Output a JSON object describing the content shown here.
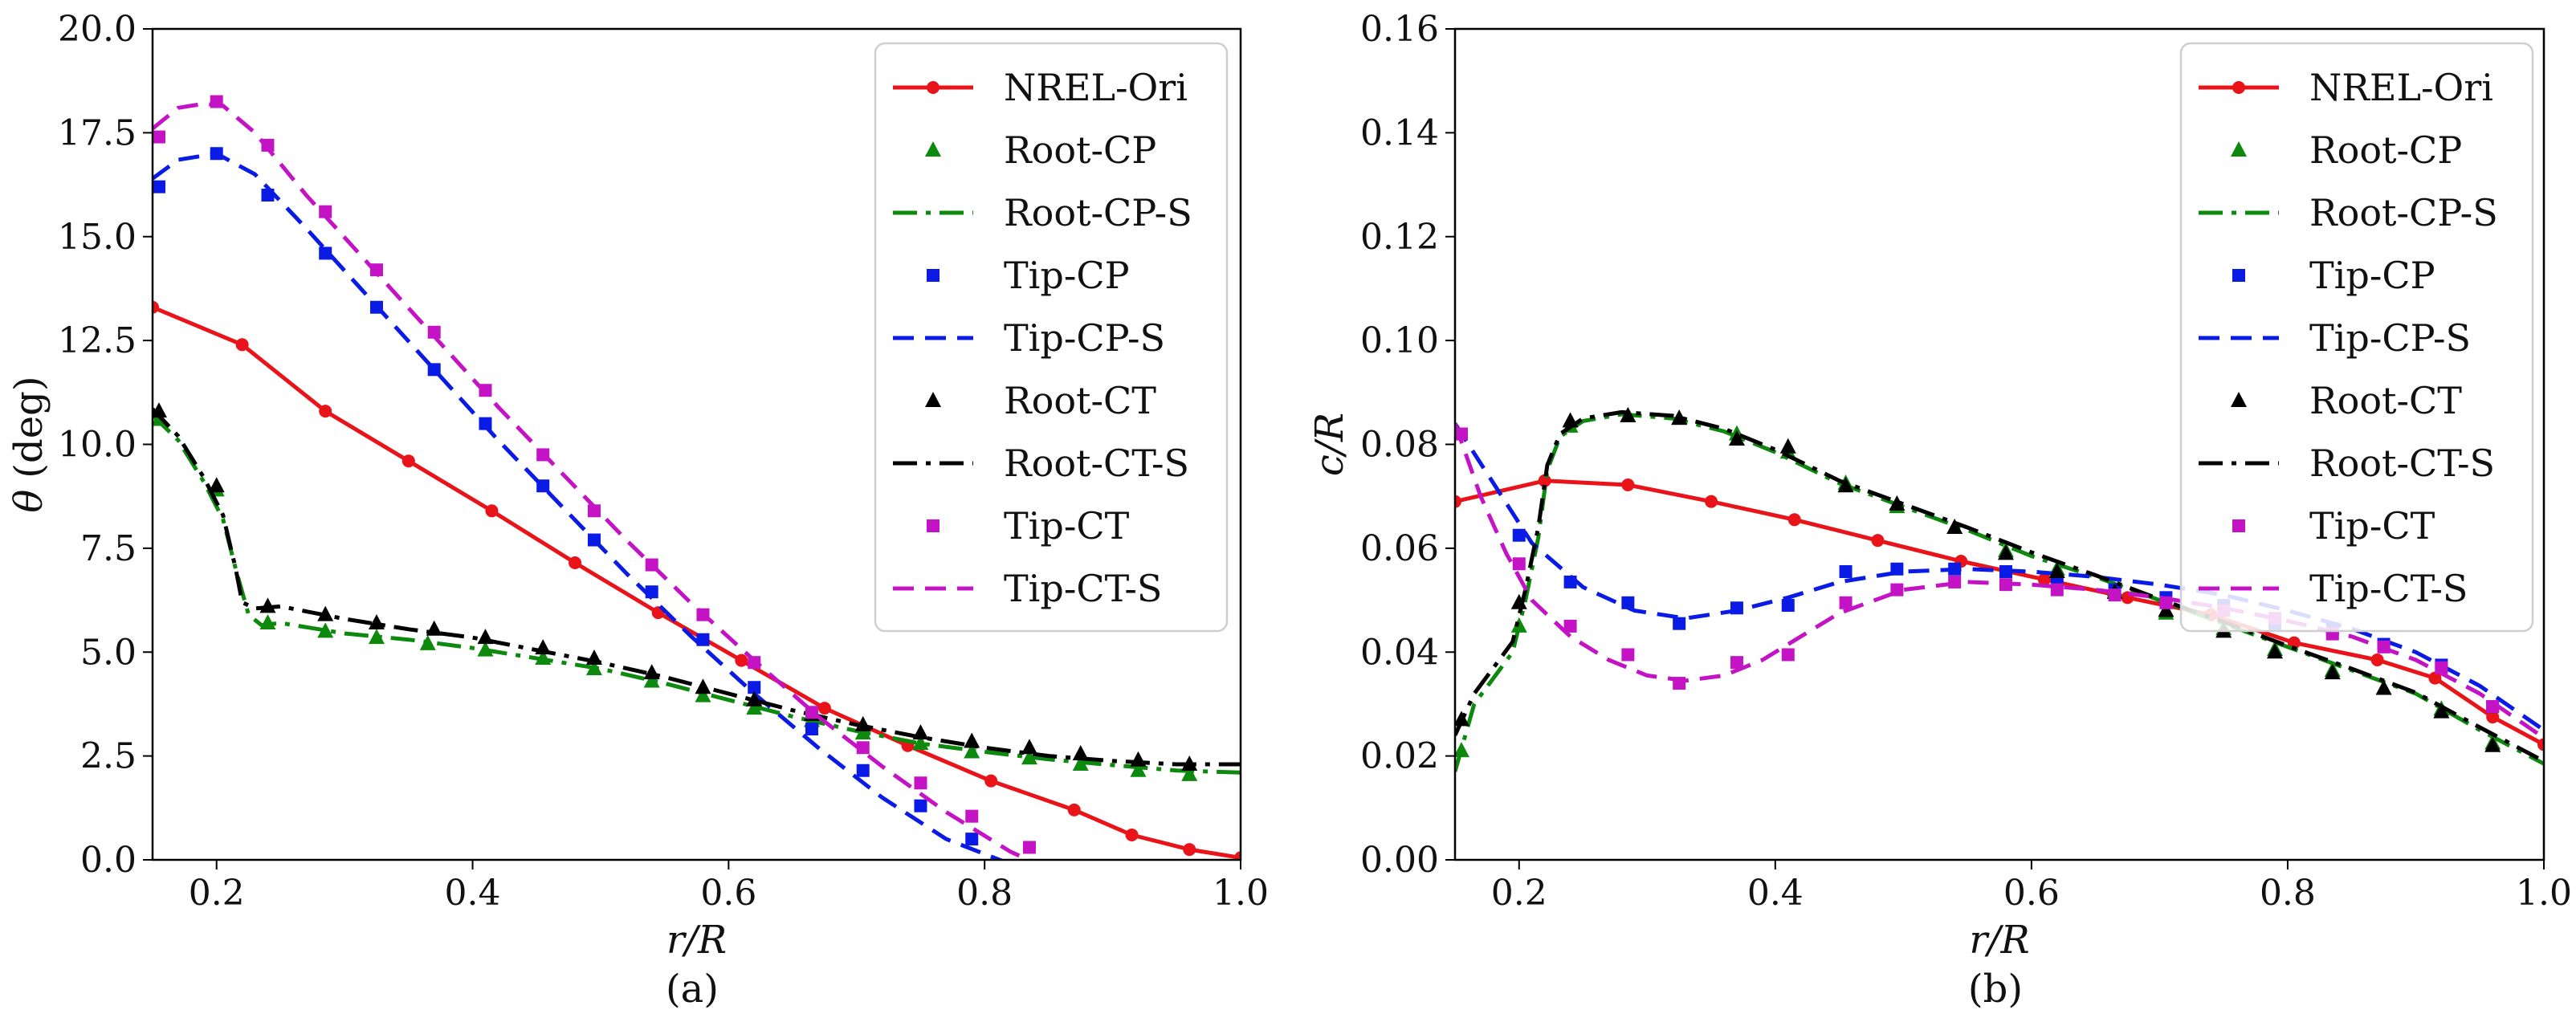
{
  "figure": {
    "captions": [
      "(a)",
      "(b)"
    ]
  },
  "chart_data": [
    {
      "type": "line",
      "panel": "a",
      "xlabel": "r/R",
      "ylabel": "θ (deg)",
      "xlim": [
        0.15,
        1.0
      ],
      "ylim": [
        0.0,
        20.0
      ],
      "xticks": [
        0.2,
        0.4,
        0.6,
        0.8,
        1.0
      ],
      "xtick_labels": [
        "0.2",
        "0.4",
        "0.6",
        "0.8",
        "1.0"
      ],
      "yticks": [
        0.0,
        2.5,
        5.0,
        7.5,
        10.0,
        12.5,
        15.0,
        17.5,
        20.0
      ],
      "ytick_labels": [
        "0.0",
        "2.5",
        "5.0",
        "7.5",
        "10.0",
        "12.5",
        "15.0",
        "17.5",
        "20.0"
      ],
      "legend_position": "top-right",
      "series": [
        {
          "name": "NREL-Ori",
          "color": "#e8141a",
          "line": "solid",
          "marker": "circle",
          "x": [
            0.15,
            0.22,
            0.285,
            0.35,
            0.415,
            0.48,
            0.545,
            0.61,
            0.675,
            0.74,
            0.805,
            0.87,
            0.915,
            0.96,
            1.0
          ],
          "y": [
            13.3,
            12.4,
            10.8,
            9.6,
            8.4,
            7.15,
            5.95,
            4.8,
            3.65,
            2.75,
            1.9,
            1.2,
            0.6,
            0.25,
            0.05
          ]
        },
        {
          "name": "Root-CP",
          "color": "#0d8a0d",
          "line": "none",
          "marker": "triangle",
          "x": [
            0.155,
            0.2,
            0.24,
            0.285,
            0.325,
            0.365,
            0.41,
            0.455,
            0.495,
            0.54,
            0.58,
            0.62,
            0.665,
            0.705,
            0.75,
            0.79,
            0.835,
            0.875,
            0.92,
            0.96
          ],
          "y": [
            10.6,
            8.9,
            5.7,
            5.5,
            5.35,
            5.2,
            5.05,
            4.85,
            4.6,
            4.3,
            3.95,
            3.65,
            3.35,
            3.05,
            2.8,
            2.6,
            2.45,
            2.3,
            2.15,
            2.05
          ]
        },
        {
          "name": "Root-CP-S",
          "color": "#0d8a0d",
          "line": "dashdot",
          "marker": "none",
          "x": [
            0.15,
            0.17,
            0.19,
            0.205,
            0.215,
            0.225,
            0.235,
            0.25,
            0.3,
            0.35,
            0.4,
            0.45,
            0.5,
            0.55,
            0.6,
            0.65,
            0.7,
            0.75,
            0.8,
            0.85,
            0.9,
            0.95,
            1.0
          ],
          "y": [
            10.7,
            10.1,
            9.1,
            8.2,
            7.0,
            5.9,
            5.65,
            5.7,
            5.45,
            5.3,
            5.1,
            4.85,
            4.6,
            4.25,
            3.85,
            3.45,
            3.1,
            2.8,
            2.6,
            2.42,
            2.28,
            2.15,
            2.1
          ]
        },
        {
          "name": "Tip-CP",
          "color": "#0a1be6",
          "line": "none",
          "marker": "square",
          "x": [
            0.155,
            0.2,
            0.24,
            0.285,
            0.325,
            0.37,
            0.41,
            0.455,
            0.495,
            0.54,
            0.58,
            0.62,
            0.665,
            0.705,
            0.75,
            0.79
          ],
          "y": [
            16.2,
            17.0,
            16.0,
            14.6,
            13.3,
            11.8,
            10.5,
            9.0,
            7.7,
            6.45,
            5.3,
            4.15,
            3.15,
            2.15,
            1.3,
            0.5
          ]
        },
        {
          "name": "Tip-CP-S",
          "color": "#0a1be6",
          "line": "dashed",
          "marker": "none",
          "x": [
            0.15,
            0.17,
            0.2,
            0.23,
            0.27,
            0.32,
            0.37,
            0.42,
            0.47,
            0.52,
            0.57,
            0.62,
            0.67,
            0.72,
            0.77,
            0.82
          ],
          "y": [
            16.4,
            16.85,
            17.0,
            16.5,
            15.2,
            13.5,
            11.8,
            10.1,
            8.5,
            6.9,
            5.4,
            4.0,
            2.7,
            1.5,
            0.5,
            -0.1
          ]
        },
        {
          "name": "Root-CT",
          "color": "#000000",
          "line": "none",
          "marker": "triangle",
          "x": [
            0.155,
            0.2,
            0.24,
            0.285,
            0.325,
            0.37,
            0.41,
            0.455,
            0.495,
            0.54,
            0.58,
            0.62,
            0.665,
            0.705,
            0.75,
            0.79,
            0.835,
            0.875,
            0.92,
            0.96
          ],
          "y": [
            10.8,
            9.0,
            6.1,
            5.9,
            5.7,
            5.55,
            5.35,
            5.1,
            4.85,
            4.5,
            4.15,
            3.85,
            3.5,
            3.25,
            3.05,
            2.85,
            2.7,
            2.55,
            2.4,
            2.3
          ]
        },
        {
          "name": "Root-CT-S",
          "color": "#000000",
          "line": "dashdot",
          "marker": "none",
          "x": [
            0.15,
            0.17,
            0.19,
            0.205,
            0.215,
            0.22,
            0.23,
            0.25,
            0.3,
            0.35,
            0.4,
            0.45,
            0.5,
            0.55,
            0.6,
            0.65,
            0.7,
            0.75,
            0.8,
            0.85,
            0.9,
            0.95,
            1.0
          ],
          "y": [
            10.85,
            10.2,
            9.2,
            8.3,
            7.0,
            6.2,
            6.05,
            6.1,
            5.8,
            5.55,
            5.35,
            5.05,
            4.75,
            4.4,
            4.0,
            3.6,
            3.25,
            2.95,
            2.7,
            2.5,
            2.38,
            2.3,
            2.3
          ]
        },
        {
          "name": "Tip-CT",
          "color": "#c413c4",
          "line": "none",
          "marker": "square",
          "x": [
            0.155,
            0.2,
            0.24,
            0.285,
            0.325,
            0.37,
            0.41,
            0.455,
            0.495,
            0.54,
            0.58,
            0.62,
            0.665,
            0.705,
            0.75,
            0.79,
            0.835
          ],
          "y": [
            17.4,
            18.25,
            17.2,
            15.6,
            14.2,
            12.7,
            11.3,
            9.75,
            8.4,
            7.1,
            5.9,
            4.75,
            3.55,
            2.7,
            1.85,
            1.05,
            0.3
          ]
        },
        {
          "name": "Tip-CT-S",
          "color": "#c413c4",
          "line": "dashed",
          "marker": "none",
          "x": [
            0.15,
            0.17,
            0.19,
            0.205,
            0.23,
            0.27,
            0.32,
            0.37,
            0.42,
            0.47,
            0.52,
            0.57,
            0.62,
            0.67,
            0.72,
            0.77,
            0.82,
            0.845
          ],
          "y": [
            17.6,
            18.1,
            18.2,
            18.15,
            17.5,
            16.0,
            14.3,
            12.6,
            10.9,
            9.3,
            7.7,
            6.2,
            4.8,
            3.45,
            2.25,
            1.15,
            0.2,
            -0.15
          ]
        }
      ]
    },
    {
      "type": "line",
      "panel": "b",
      "xlabel": "r/R",
      "ylabel": "c/R",
      "xlim": [
        0.15,
        1.0
      ],
      "ylim": [
        0.0,
        0.16
      ],
      "xticks": [
        0.2,
        0.4,
        0.6,
        0.8,
        1.0
      ],
      "xtick_labels": [
        "0.2",
        "0.4",
        "0.6",
        "0.8",
        "1.0"
      ],
      "yticks": [
        0.0,
        0.02,
        0.04,
        0.06,
        0.08,
        0.1,
        0.12,
        0.14,
        0.16
      ],
      "ytick_labels": [
        "0.00",
        "0.02",
        "0.04",
        "0.06",
        "0.08",
        "0.10",
        "0.12",
        "0.14",
        "0.16"
      ],
      "legend_position": "top-right",
      "series": [
        {
          "name": "NREL-Ori",
          "color": "#e8141a",
          "line": "solid",
          "marker": "circle",
          "x": [
            0.15,
            0.22,
            0.285,
            0.35,
            0.415,
            0.48,
            0.545,
            0.61,
            0.675,
            0.74,
            0.805,
            0.87,
            0.915,
            0.96,
            1.0
          ],
          "y": [
            0.069,
            0.073,
            0.0722,
            0.069,
            0.0655,
            0.0615,
            0.0575,
            0.054,
            0.0505,
            0.0472,
            0.0418,
            0.0385,
            0.035,
            0.0275,
            0.0222
          ]
        },
        {
          "name": "Root-CP",
          "color": "#0d8a0d",
          "line": "none",
          "marker": "triangle",
          "x": [
            0.155,
            0.2,
            0.24,
            0.285,
            0.325,
            0.37,
            0.41,
            0.455,
            0.495,
            0.54,
            0.58,
            0.62,
            0.665,
            0.705,
            0.75,
            0.79,
            0.835,
            0.875,
            0.92,
            0.96
          ],
          "y": [
            0.021,
            0.045,
            0.0835,
            0.0855,
            0.085,
            0.082,
            0.0785,
            0.0725,
            0.068,
            0.064,
            0.0595,
            0.056,
            0.052,
            0.0475,
            0.0445,
            0.0405,
            0.0365,
            0.033,
            0.029,
            0.0225
          ]
        },
        {
          "name": "Root-CP-S",
          "color": "#0d8a0d",
          "line": "dashdot",
          "marker": "none",
          "x": [
            0.15,
            0.165,
            0.18,
            0.195,
            0.205,
            0.215,
            0.222,
            0.232,
            0.25,
            0.28,
            0.32,
            0.36,
            0.4,
            0.45,
            0.5,
            0.55,
            0.6,
            0.65,
            0.7,
            0.75,
            0.8,
            0.85,
            0.9,
            0.95,
            1.0
          ],
          "y": [
            0.017,
            0.03,
            0.035,
            0.04,
            0.05,
            0.062,
            0.075,
            0.0815,
            0.0845,
            0.0858,
            0.085,
            0.0825,
            0.0785,
            0.0725,
            0.068,
            0.0635,
            0.0585,
            0.0545,
            0.05,
            0.0455,
            0.041,
            0.0365,
            0.032,
            0.025,
            0.0185
          ]
        },
        {
          "name": "Tip-CP",
          "color": "#0a1be6",
          "line": "none",
          "marker": "square",
          "x": [
            0.155,
            0.2,
            0.24,
            0.285,
            0.325,
            0.37,
            0.41,
            0.455,
            0.495,
            0.54,
            0.58,
            0.62,
            0.665,
            0.705,
            0.75,
            0.79,
            0.835,
            0.875,
            0.92,
            0.96
          ],
          "y": [
            0.082,
            0.0625,
            0.0535,
            0.0495,
            0.0455,
            0.0485,
            0.049,
            0.0555,
            0.056,
            0.056,
            0.0555,
            0.0535,
            0.052,
            0.0505,
            0.049,
            0.0455,
            0.0445,
            0.0415,
            0.0375,
            0.0295
          ]
        },
        {
          "name": "Tip-CP-S",
          "color": "#0a1be6",
          "line": "dashed",
          "marker": "none",
          "x": [
            0.15,
            0.18,
            0.21,
            0.25,
            0.29,
            0.33,
            0.37,
            0.41,
            0.45,
            0.5,
            0.55,
            0.6,
            0.65,
            0.7,
            0.75,
            0.8,
            0.85,
            0.9,
            0.95,
            1.0
          ],
          "y": [
            0.084,
            0.0725,
            0.061,
            0.0525,
            0.048,
            0.0465,
            0.048,
            0.0505,
            0.0535,
            0.0555,
            0.056,
            0.0555,
            0.0545,
            0.053,
            0.051,
            0.048,
            0.0445,
            0.04,
            0.0335,
            0.025
          ]
        },
        {
          "name": "Root-CT",
          "color": "#000000",
          "line": "none",
          "marker": "triangle",
          "x": [
            0.155,
            0.2,
            0.24,
            0.285,
            0.325,
            0.37,
            0.41,
            0.455,
            0.495,
            0.54,
            0.58,
            0.62,
            0.665,
            0.705,
            0.75,
            0.79,
            0.835,
            0.875,
            0.92,
            0.96
          ],
          "y": [
            0.027,
            0.0495,
            0.0845,
            0.0855,
            0.085,
            0.081,
            0.0795,
            0.072,
            0.0685,
            0.064,
            0.059,
            0.0555,
            0.0515,
            0.048,
            0.044,
            0.04,
            0.036,
            0.033,
            0.0285,
            0.022
          ]
        },
        {
          "name": "Root-CT-S",
          "color": "#000000",
          "line": "dashdot",
          "marker": "none",
          "x": [
            0.15,
            0.165,
            0.18,
            0.195,
            0.205,
            0.215,
            0.222,
            0.232,
            0.25,
            0.28,
            0.32,
            0.36,
            0.4,
            0.45,
            0.5,
            0.55,
            0.6,
            0.65,
            0.7,
            0.75,
            0.8,
            0.85,
            0.9,
            0.95,
            1.0
          ],
          "y": [
            0.024,
            0.032,
            0.037,
            0.042,
            0.052,
            0.064,
            0.076,
            0.082,
            0.085,
            0.0862,
            0.0855,
            0.083,
            0.079,
            0.073,
            0.0685,
            0.064,
            0.0592,
            0.0548,
            0.0502,
            0.0458,
            0.0412,
            0.0368,
            0.0322,
            0.0255,
            0.019
          ]
        },
        {
          "name": "Tip-CT",
          "color": "#c413c4",
          "line": "none",
          "marker": "square",
          "x": [
            0.155,
            0.2,
            0.24,
            0.285,
            0.325,
            0.37,
            0.41,
            0.455,
            0.495,
            0.54,
            0.58,
            0.62,
            0.665,
            0.705,
            0.75,
            0.79,
            0.835,
            0.875,
            0.92,
            0.96
          ],
          "y": [
            0.082,
            0.057,
            0.045,
            0.0395,
            0.034,
            0.038,
            0.0395,
            0.0495,
            0.052,
            0.0535,
            0.053,
            0.052,
            0.051,
            0.0495,
            0.048,
            0.0465,
            0.0435,
            0.041,
            0.037,
            0.0295
          ]
        },
        {
          "name": "Tip-CT-S",
          "color": "#c413c4",
          "line": "dashed",
          "marker": "none",
          "x": [
            0.15,
            0.17,
            0.19,
            0.21,
            0.24,
            0.27,
            0.3,
            0.33,
            0.36,
            0.39,
            0.42,
            0.45,
            0.5,
            0.55,
            0.6,
            0.65,
            0.7,
            0.75,
            0.8,
            0.85,
            0.9,
            0.95,
            1.0
          ],
          "y": [
            0.084,
            0.07,
            0.059,
            0.05,
            0.043,
            0.0385,
            0.0355,
            0.0345,
            0.0355,
            0.0385,
            0.043,
            0.0475,
            0.052,
            0.0535,
            0.053,
            0.052,
            0.0505,
            0.0485,
            0.046,
            0.043,
            0.0385,
            0.032,
            0.0235
          ]
        }
      ]
    }
  ]
}
